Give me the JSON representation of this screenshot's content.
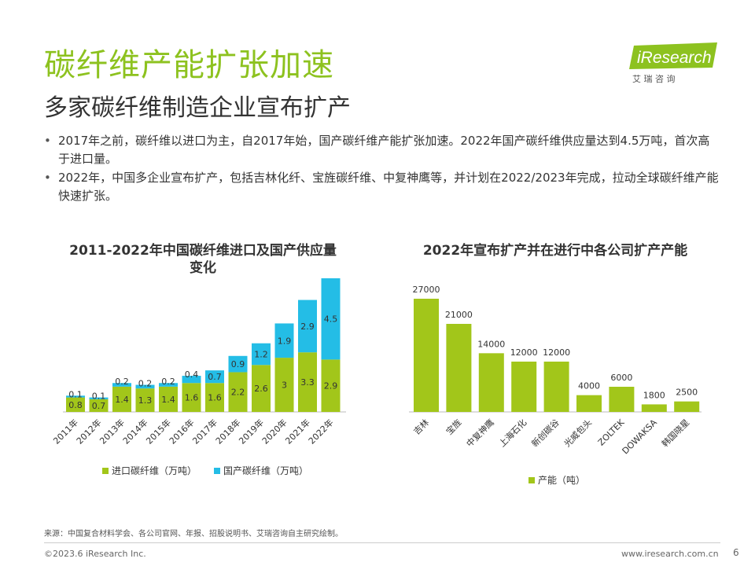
{
  "title": "碳纤维产能扩张加速",
  "subtitle": "多家碳纤维制造企业宣布扩产",
  "logo": {
    "brand": "iResearch",
    "sub": "艾  瑞  咨  询",
    "color": "#8dc21f"
  },
  "bullets": [
    "2017年之前，碳纤维以进口为主，自2017年始，国产碳纤维产能扩张加速。2022年国产碳纤维供应量达到4.5万吨，首次高于进口量。",
    "2022年，中国多企业宣布扩产，包括吉林化纤、宝旌碳纤维、中复神鹰等，并计划在2022/2023年完成，拉动全球碳纤维产能快速扩张。"
  ],
  "colors": {
    "green": "#a2c61a",
    "blue": "#24bde6",
    "title_green": "#8dc21f"
  },
  "chart_data": [
    {
      "type": "bar",
      "stacked": true,
      "title": "2011-2022年中国碳纤维进口及国产供应量变化",
      "categories": [
        "2011年",
        "2012年",
        "2013年",
        "2014年",
        "2015年",
        "2016年",
        "2017年",
        "2018年",
        "2019年",
        "2020年",
        "2021年",
        "2022年"
      ],
      "series": [
        {
          "name": "进口碳纤维（万吨）",
          "color": "#a2c61a",
          "values": [
            0.8,
            0.7,
            1.4,
            1.3,
            1.4,
            1.6,
            1.6,
            2.2,
            2.6,
            3.0,
            3.3,
            2.9
          ]
        },
        {
          "name": "国产碳纤维（万吨）",
          "color": "#24bde6",
          "values": [
            0.1,
            0.1,
            0.2,
            0.2,
            0.2,
            0.4,
            0.7,
            0.9,
            1.2,
            1.9,
            2.9,
            4.5
          ]
        }
      ],
      "ylim": [
        0,
        7.4
      ],
      "legend": "bottom"
    },
    {
      "type": "bar",
      "title": "2022年宣布扩产并在进行中各公司扩产产能",
      "categories": [
        "吉林",
        "宝旌",
        "中复神鹰",
        "上海石化",
        "新创碳谷",
        "光威包头",
        "ZOLTEK",
        "DOWAKSA",
        "韩国晓星"
      ],
      "series": [
        {
          "name": "产能（吨）",
          "color": "#a2c61a",
          "values": [
            27000,
            21000,
            14000,
            12000,
            12000,
            4000,
            6000,
            1800,
            2500
          ]
        }
      ],
      "ylim": [
        0,
        30000
      ],
      "legend": "bottom"
    }
  ],
  "footer": {
    "source": "来源：中国复合材料学会、各公司官网、年报、招股说明书、艾瑞咨询自主研究绘制。",
    "copyright": "©2023.6 iResearch Inc.",
    "website": "www.iresearch.com.cn",
    "page": "6"
  }
}
